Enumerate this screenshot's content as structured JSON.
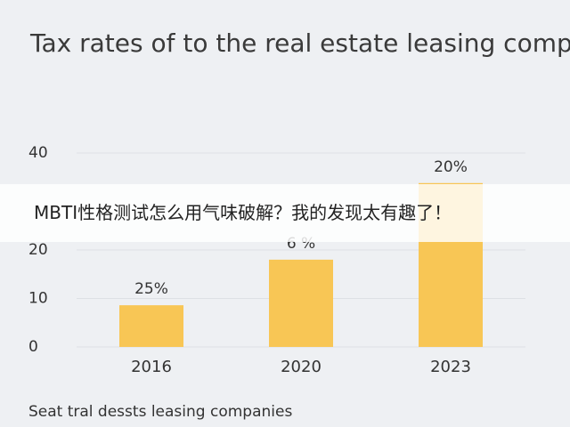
{
  "chart_data": {
    "type": "bar",
    "title": "Tax rates of to the real estate leasing companies",
    "caption": "Seat tral dessts leasing companies",
    "categories": [
      "2016",
      "2020",
      "2023"
    ],
    "values": [
      8.6,
      18,
      33.8
    ],
    "annotations": [
      "25%",
      "6 %",
      "20%"
    ],
    "color": "#f8c655",
    "ylim": [
      0,
      40
    ],
    "yticks": [
      0,
      10,
      20,
      40
    ],
    "grid": true
  },
  "overlay": {
    "banner": "MBTI性格测试怎么用气味破解？我的发现太有趣了！"
  }
}
